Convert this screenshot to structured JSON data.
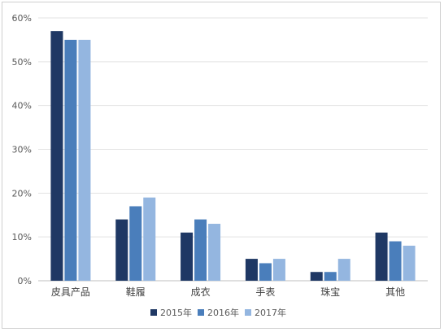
{
  "chart_data": {
    "type": "bar",
    "title": "",
    "xlabel": "",
    "ylabel": "",
    "categories": [
      "皮具产品",
      "鞋履",
      "成衣",
      "手表",
      "珠宝",
      "其他"
    ],
    "series": [
      {
        "name": "2015年",
        "color": "#1f3864",
        "values": [
          57,
          14,
          11,
          5,
          2,
          11
        ]
      },
      {
        "name": "2016年",
        "color": "#4a7ebb",
        "values": [
          55,
          17,
          14,
          4,
          2,
          9
        ]
      },
      {
        "name": "2017年",
        "color": "#94b6e0",
        "values": [
          55,
          19,
          13,
          5,
          5,
          8
        ]
      }
    ],
    "ylim": [
      0,
      60
    ],
    "yticks": [
      0,
      10,
      20,
      30,
      40,
      50,
      60
    ],
    "ytick_labels": [
      "0%",
      "10%",
      "20%",
      "30%",
      "40%",
      "50%",
      "60%"
    ],
    "grid": true,
    "legend_position": "bottom"
  }
}
